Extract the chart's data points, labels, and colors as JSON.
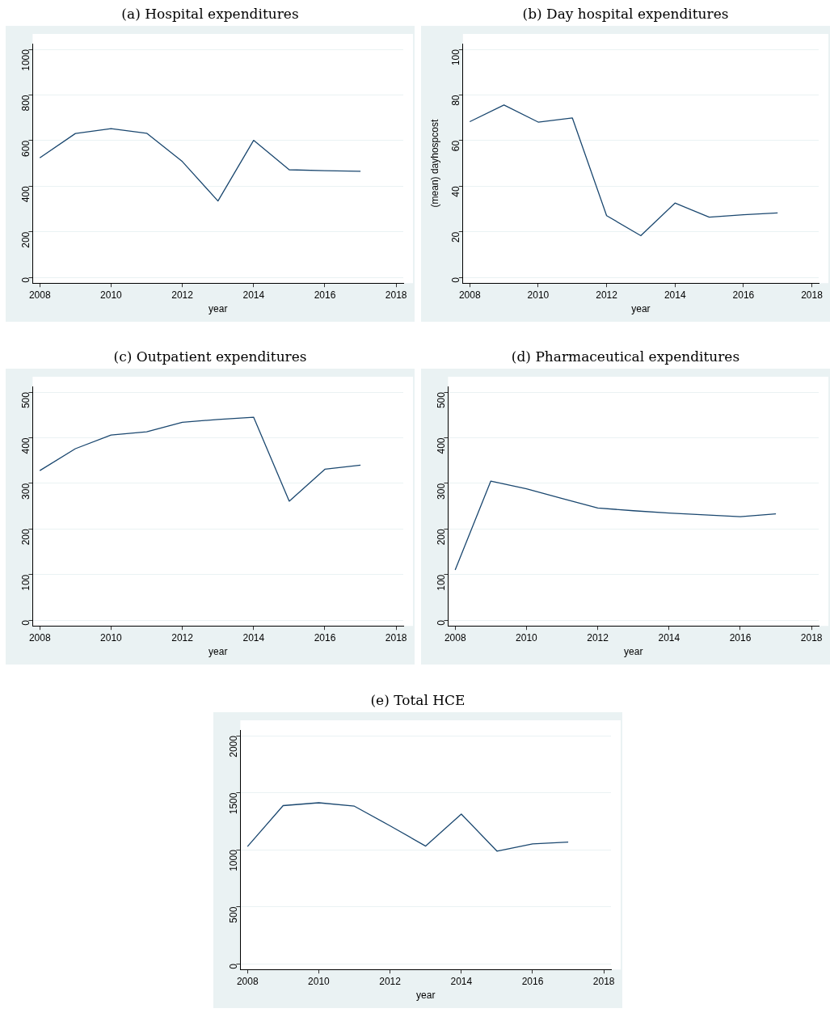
{
  "chart_data": [
    {
      "type": "line",
      "title": "(a) Hospital expenditures",
      "xlabel": "year",
      "x": [
        2008,
        2009,
        2010,
        2011,
        2012,
        2013,
        2014,
        2015,
        2016,
        2017
      ],
      "values": [
        524,
        631,
        652,
        632,
        508,
        335,
        601,
        472,
        468,
        465
      ],
      "color": "#1a476f",
      "xlim": [
        2007.8,
        2018.2
      ],
      "xticks": [
        2008,
        2010,
        2012,
        2014,
        2016,
        2018
      ],
      "ylim": [
        -25,
        1025
      ],
      "yticks": [
        0,
        200,
        400,
        600,
        800,
        1000
      ],
      "grid": "y"
    },
    {
      "type": "line",
      "title": "(b) Day hospital expenditures",
      "xlabel": "year",
      "ylabel": "(mean) dayhospcost",
      "x": [
        2008,
        2009,
        2010,
        2011,
        2012,
        2013,
        2014,
        2015,
        2016,
        2017
      ],
      "values": [
        68.3,
        75.6,
        68.1,
        69.9,
        27.1,
        18.3,
        32.6,
        26.4,
        27.5,
        28.3
      ],
      "color": "#1a476f",
      "xlim": [
        2007.8,
        2018.2
      ],
      "xticks": [
        2008,
        2010,
        2012,
        2014,
        2016,
        2018
      ],
      "ylim": [
        -2.5,
        102.5
      ],
      "yticks": [
        0,
        20,
        40,
        60,
        80,
        100
      ],
      "grid": "y"
    },
    {
      "type": "line",
      "title": "(c) Outpatient expenditures",
      "xlabel": "year",
      "x": [
        2008,
        2009,
        2010,
        2011,
        2012,
        2013,
        2014,
        2015,
        2016,
        2017
      ],
      "values": [
        328,
        376,
        406,
        413,
        434,
        440,
        445,
        261,
        331,
        340
      ],
      "color": "#1a476f",
      "xlim": [
        2007.8,
        2018.2
      ],
      "xticks": [
        2008,
        2010,
        2012,
        2014,
        2016,
        2018
      ],
      "ylim": [
        -12.5,
        512.5
      ],
      "yticks": [
        0,
        100,
        200,
        300,
        400,
        500
      ],
      "grid": "y"
    },
    {
      "type": "line",
      "title": "(d) Pharmaceutical expenditures",
      "xlabel": "year",
      "x": [
        2008,
        2009,
        2010,
        2011,
        2012,
        2013,
        2014,
        2015,
        2016,
        2017
      ],
      "values": [
        110,
        305,
        288,
        267,
        246,
        240,
        235,
        231,
        227,
        233
      ],
      "color": "#1a476f",
      "xlim": [
        2007.8,
        2018.2
      ],
      "xticks": [
        2008,
        2010,
        2012,
        2014,
        2016,
        2018
      ],
      "ylim": [
        -12.5,
        512.5
      ],
      "yticks": [
        0,
        100,
        200,
        300,
        400,
        500
      ],
      "grid": "y"
    },
    {
      "type": "line",
      "title": "(e) Total HCE",
      "xlabel": "year",
      "x": [
        2008,
        2009,
        2010,
        2011,
        2012,
        2013,
        2014,
        2015,
        2016,
        2017
      ],
      "values": [
        1028,
        1387,
        1412,
        1382,
        1210,
        1032,
        1313,
        988,
        1051,
        1067
      ],
      "color": "#1a476f",
      "xlim": [
        2007.8,
        2018.2
      ],
      "xticks": [
        2008,
        2010,
        2012,
        2014,
        2016,
        2018
      ],
      "ylim": [
        -50,
        2050
      ],
      "yticks": [
        0,
        500,
        1000,
        1500,
        2000
      ],
      "grid": "y"
    }
  ]
}
